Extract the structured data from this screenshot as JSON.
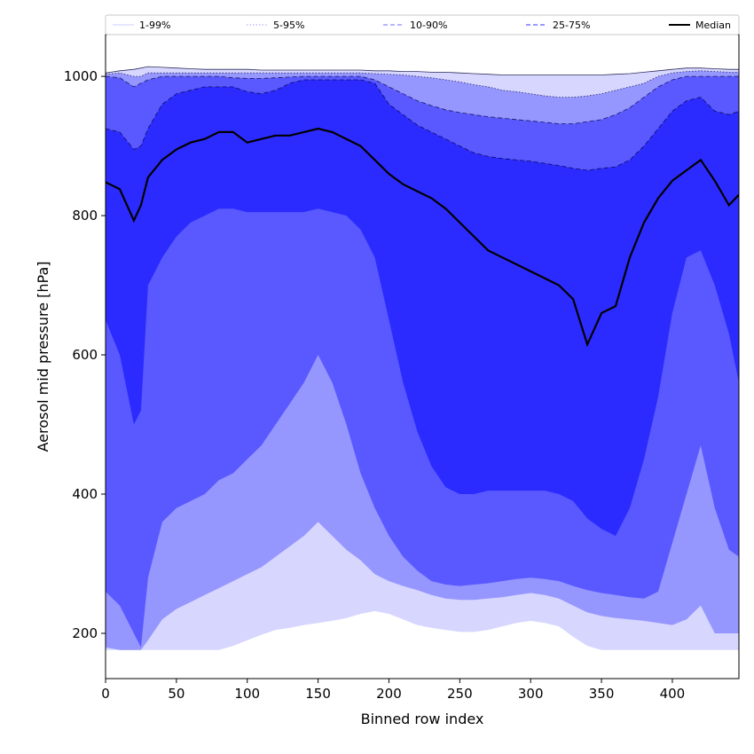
{
  "chart_data": {
    "type": "area",
    "title": "",
    "xlabel": "Binned row index",
    "ylabel": "Aerosol mid pressure [hPa]",
    "xlim": [
      0,
      447
    ],
    "ylim": [
      135,
      1060
    ],
    "xticks": [
      0,
      50,
      100,
      150,
      200,
      250,
      300,
      350,
      400
    ],
    "yticks": [
      200,
      400,
      600,
      800,
      1000
    ],
    "legend_position": "top, across",
    "x": [
      0,
      10,
      20,
      25,
      30,
      40,
      50,
      60,
      70,
      80,
      90,
      100,
      110,
      120,
      130,
      140,
      150,
      160,
      170,
      180,
      190,
      200,
      210,
      220,
      230,
      240,
      250,
      260,
      270,
      280,
      290,
      300,
      310,
      320,
      330,
      340,
      350,
      360,
      370,
      380,
      390,
      400,
      410,
      420,
      430,
      440,
      447
    ],
    "series": [
      {
        "name": "1-99%",
        "key": "p1",
        "color": "#d6d6ff",
        "style": "solid",
        "values": [
          1005,
          1008,
          1010,
          1012,
          1014,
          1013,
          1012,
          1011,
          1010,
          1010,
          1010,
          1010,
          1009,
          1009,
          1009,
          1009,
          1009,
          1009,
          1009,
          1009,
          1008,
          1008,
          1007,
          1007,
          1006,
          1006,
          1005,
          1004,
          1003,
          1002,
          1002,
          1002,
          1002,
          1002,
          1002,
          1002,
          1002,
          1003,
          1004,
          1006,
          1008,
          1010,
          1012,
          1012,
          1011,
          1010,
          1010
        ]
      },
      {
        "name": "5-95%",
        "key": "p5",
        "color": "#b5b5ff",
        "style": "dotted",
        "values": [
          1003,
          1005,
          1000,
          1000,
          1005,
          1005,
          1005,
          1005,
          1005,
          1005,
          1005,
          1005,
          1005,
          1005,
          1005,
          1005,
          1005,
          1005,
          1005,
          1005,
          1004,
          1003,
          1002,
          1000,
          998,
          995,
          992,
          988,
          985,
          980,
          978,
          975,
          972,
          970,
          970,
          972,
          975,
          980,
          985,
          990,
          1000,
          1005,
          1007,
          1008,
          1007,
          1006,
          1006
        ]
      },
      {
        "name": "10-90%",
        "key": "p10",
        "color": "#8a8aff",
        "style": "dashed",
        "values": [
          1000,
          998,
          985,
          990,
          995,
          1000,
          1000,
          1000,
          1000,
          1000,
          998,
          997,
          997,
          998,
          999,
          1000,
          1000,
          1000,
          1000,
          1000,
          995,
          985,
          975,
          965,
          958,
          952,
          948,
          945,
          942,
          940,
          938,
          936,
          934,
          932,
          932,
          935,
          938,
          945,
          955,
          970,
          985,
          995,
          1000,
          1000,
          1000,
          1000,
          1000
        ]
      },
      {
        "name": "25-75%",
        "key": "p25",
        "color": "#5c5cff",
        "style": "dashed",
        "values": [
          925,
          920,
          895,
          900,
          925,
          960,
          975,
          980,
          985,
          985,
          985,
          978,
          975,
          980,
          990,
          995,
          995,
          995,
          995,
          995,
          990,
          960,
          945,
          930,
          920,
          910,
          900,
          890,
          885,
          882,
          880,
          878,
          875,
          872,
          868,
          865,
          868,
          870,
          880,
          900,
          925,
          950,
          965,
          970,
          950,
          945,
          950
        ]
      },
      {
        "name": "Median",
        "key": "median",
        "color": "#000000",
        "style": "solid",
        "values": [
          848,
          838,
          793,
          815,
          855,
          880,
          895,
          905,
          910,
          920,
          920,
          905,
          910,
          915,
          915,
          920,
          925,
          920,
          910,
          900,
          880,
          860,
          845,
          835,
          825,
          810,
          790,
          770,
          750,
          740,
          730,
          720,
          710,
          700,
          680,
          615,
          660,
          670,
          740,
          790,
          825,
          850,
          865,
          880,
          850,
          815,
          830
        ]
      },
      {
        "name": "75%",
        "key": "p75",
        "legend": false,
        "values": [
          650,
          600,
          500,
          520,
          700,
          740,
          770,
          790,
          800,
          810,
          810,
          805,
          805,
          805,
          805,
          805,
          810,
          805,
          800,
          780,
          740,
          650,
          560,
          490,
          440,
          410,
          400,
          400,
          405,
          405,
          405,
          405,
          405,
          400,
          390,
          365,
          350,
          340,
          380,
          450,
          540,
          660,
          740,
          750,
          700,
          630,
          560
        ]
      },
      {
        "name": "90%",
        "key": "p90",
        "legend": false,
        "values": [
          260,
          240,
          200,
          180,
          280,
          360,
          380,
          390,
          400,
          420,
          430,
          450,
          470,
          500,
          530,
          560,
          600,
          560,
          500,
          430,
          380,
          340,
          310,
          290,
          275,
          270,
          268,
          270,
          272,
          275,
          278,
          280,
          278,
          275,
          268,
          262,
          258,
          255,
          252,
          250,
          260,
          330,
          400,
          470,
          380,
          320,
          310
        ]
      },
      {
        "name": "95%",
        "key": "p95",
        "legend": false,
        "values": [
          180,
          176,
          176,
          176,
          190,
          220,
          235,
          245,
          255,
          265,
          275,
          285,
          295,
          310,
          325,
          340,
          360,
          340,
          320,
          305,
          285,
          275,
          268,
          262,
          255,
          250,
          248,
          248,
          250,
          252,
          255,
          258,
          255,
          250,
          240,
          230,
          225,
          222,
          220,
          218,
          215,
          212,
          220,
          240,
          200,
          200,
          200
        ]
      },
      {
        "name": "99%",
        "key": "p99",
        "legend": false,
        "values": [
          176,
          176,
          176,
          176,
          176,
          176,
          176,
          176,
          176,
          176,
          182,
          190,
          198,
          205,
          208,
          212,
          215,
          218,
          222,
          228,
          232,
          228,
          220,
          212,
          208,
          205,
          202,
          202,
          205,
          210,
          215,
          218,
          215,
          210,
          195,
          182,
          176,
          176,
          176,
          176,
          176,
          176,
          176,
          176,
          176,
          176,
          176
        ]
      }
    ],
    "fill_bands": [
      {
        "from": "p1",
        "to": "p99",
        "color": "#d6d6ff"
      },
      {
        "from": "p5",
        "to": "p95",
        "color": "#9696ff"
      },
      {
        "from": "p10",
        "to": "p90",
        "color": "#5959ff"
      },
      {
        "from": "p25",
        "to": "p75",
        "color": "#2b2bff"
      }
    ]
  }
}
